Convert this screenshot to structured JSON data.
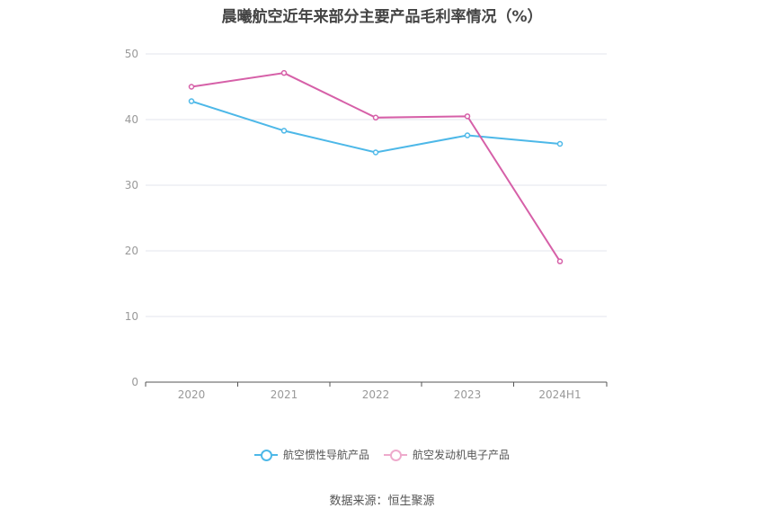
{
  "chart_data": {
    "type": "line",
    "title": "晨曦航空近年来部分主要产品毛利率情况（%）",
    "categories": [
      "2020",
      "2021",
      "2022",
      "2023",
      "2024H1"
    ],
    "ylim": [
      0,
      50
    ],
    "yticks": [
      0,
      10,
      20,
      30,
      40,
      50
    ],
    "grid": true,
    "legend_position": "bottom",
    "series": [
      {
        "name": "航空惯性导航产品",
        "color": "#4db8e8",
        "values": [
          42.8,
          38.3,
          35.0,
          37.6,
          36.3
        ]
      },
      {
        "name": "航空发动机电子产品",
        "color": "#d660a8",
        "values": [
          45.0,
          47.1,
          40.3,
          40.5,
          18.4
        ]
      }
    ]
  },
  "source": "数据来源：恒生聚源"
}
